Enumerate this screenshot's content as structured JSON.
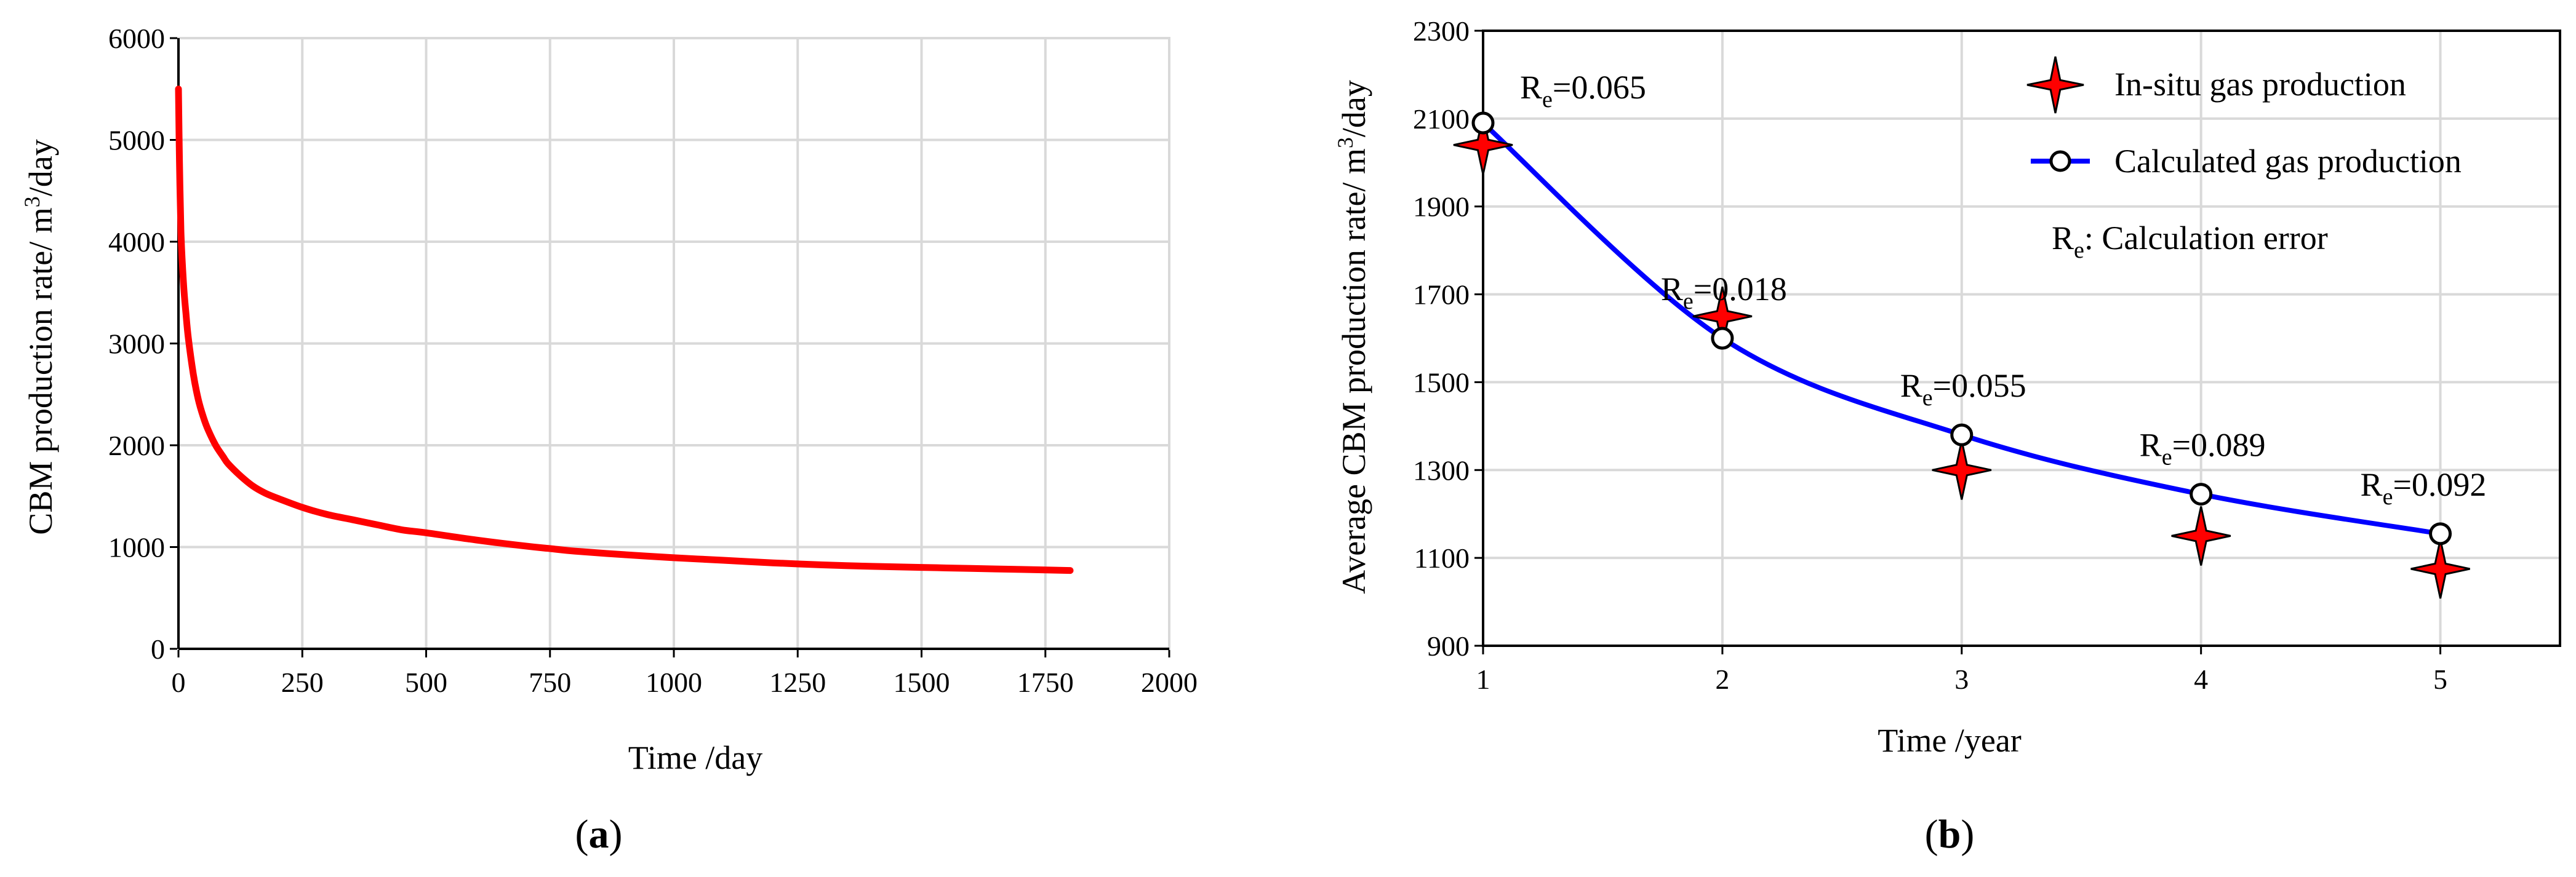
{
  "colors": {
    "red_series": "#ff0000",
    "blue_series": "#0000ff",
    "grid": "#d9d9d9",
    "axis": "#000000",
    "star_fill": "#ff0000",
    "star_stroke": "#000000"
  },
  "chart_data": [
    {
      "panel_label": "a",
      "type": "line",
      "title": "",
      "xlabel": "Time /day",
      "ylabel_main": "CBM production rate/ m",
      "ylabel_sup": "3",
      "ylabel_tail": "/day",
      "xlim": [
        0,
        2000
      ],
      "ylim": [
        0,
        6000
      ],
      "x_ticks": [
        "0",
        "250",
        "500",
        "750",
        "1000",
        "1250",
        "1500",
        "1750",
        "2000"
      ],
      "y_ticks": [
        "0",
        "1000",
        "2000",
        "3000",
        "4000",
        "5000",
        "6000"
      ],
      "grid": true,
      "series": [
        {
          "color": "#ff0000",
          "x": [
            0,
            2,
            5,
            10,
            15,
            20,
            30,
            40,
            50,
            60,
            75,
            90,
            100,
            125,
            150,
            175,
            200,
            250,
            300,
            350,
            400,
            450,
            500,
            600,
            700,
            750,
            800,
            900,
            1000,
            1100,
            1200,
            1300,
            1400,
            1500,
            1600,
            1700,
            1800
          ],
          "y": [
            5500,
            4800,
            4100,
            3600,
            3300,
            3050,
            2700,
            2450,
            2280,
            2150,
            2000,
            1890,
            1820,
            1700,
            1600,
            1530,
            1480,
            1390,
            1320,
            1270,
            1220,
            1170,
            1140,
            1070,
            1010,
            985,
            960,
            925,
            895,
            870,
            845,
            825,
            810,
            800,
            790,
            780,
            770
          ]
        }
      ]
    },
    {
      "panel_label": "b",
      "type": "line",
      "title": "",
      "xlabel": "Time /year",
      "ylabel_main": "Average CBM production rate/ m",
      "ylabel_sup": "3",
      "ylabel_tail": "/day",
      "xlim": [
        1,
        5.5
      ],
      "ylim": [
        900,
        2300
      ],
      "x_ticks": [
        "1",
        "2",
        "3",
        "4",
        "5"
      ],
      "y_ticks": [
        "900",
        "1100",
        "1300",
        "1500",
        "1700",
        "1900",
        "2100",
        "2300"
      ],
      "grid": true,
      "legend_position": "top-right",
      "legend": {
        "insitu": "In-situ gas production",
        "calculated": "Calculated gas production",
        "note_sym": "R",
        "note_sub": "e",
        "note_text": ": Calculation error"
      },
      "series": [
        {
          "name": "In-situ gas production",
          "marker": "star",
          "x": [
            1,
            2,
            3,
            4,
            5
          ],
          "y": [
            2040,
            1650,
            1300,
            1150,
            1075
          ]
        },
        {
          "name": "Calculated gas production",
          "marker": "circle",
          "color": "#0000ff",
          "x": [
            1,
            2,
            3,
            4,
            5
          ],
          "y": [
            2090,
            1600,
            1380,
            1245,
            1155
          ]
        }
      ],
      "annotations": [
        {
          "sym": "R",
          "sub": "e",
          "text": "=0.065"
        },
        {
          "sym": "R",
          "sub": "e",
          "text": "=0.018"
        },
        {
          "sym": "R",
          "sub": "e",
          "text": "=0.055"
        },
        {
          "sym": "R",
          "sub": "e",
          "text": "=0.089"
        },
        {
          "sym": "R",
          "sub": "e",
          "text": "=0.092"
        }
      ]
    }
  ]
}
